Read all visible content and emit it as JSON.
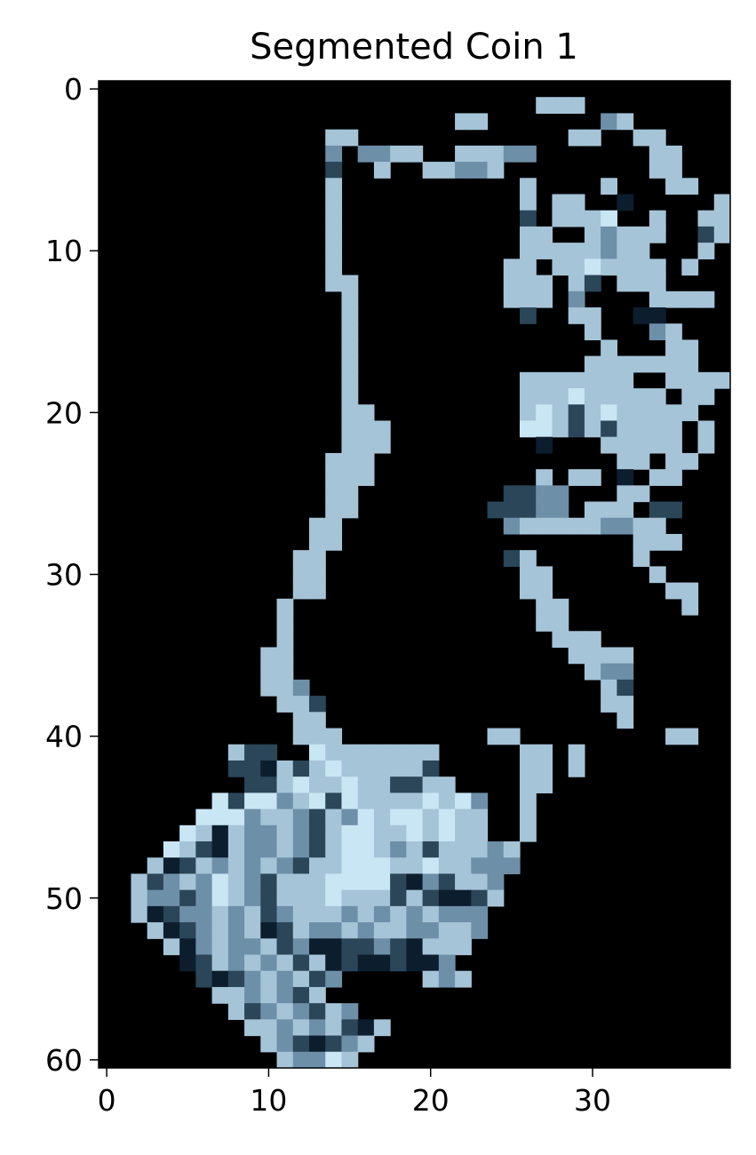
{
  "chart_data": {
    "type": "heatmap",
    "title": "Segmented Coin 1",
    "xlabel": "",
    "ylabel": "",
    "x_range": [
      -0.5,
      38.5
    ],
    "y_range": [
      60.5,
      -0.5
    ],
    "x_ticks": [
      0,
      10,
      20,
      30
    ],
    "y_ticks": [
      0,
      10,
      20,
      30,
      40,
      50,
      60
    ],
    "grid": false,
    "background": "#000000",
    "palette": {
      "p": "#a6c4d8",
      "q": "#c9e6f5",
      "m": "#6e8fa8",
      "d": "#2a4658",
      "k": "#0c1e2e"
    },
    "pixel_rows": [
      ".......................................",
      "...........................ppp.........",
      "......................pp.......mp......",
      "..............pp.............pp..pp....",
      "..............m.mmpp..pppmm.......pp...",
      "..............d..p..ppmmp.........pp...",
      "..............p...........p....p...pp..",
      "..............p...........p.pp..k.....pp",
      "..............p...........d.pppq..p..pppp",
      "..............p...........pp..pmppp..dp..",
      "..............p...........pppppmpp...p..",
      "..............p..........pp.ppqpppp.p..",
      "..............pp.........ppp.pd.ppp.....",
      "...............p.........ppp.m....pppp.",
      "...............p..........d..pp..kk...",
      "...............p..............p...mp...",
      "...............p...............p...pp..",
      "...............p..............ppppppp..",
      "...............p..........ppppppp..pppp",
      "...............p..........pppqppppp.pp.",
      "...............pp.........pqpdpqppppp..",
      "...............ppp........qqpdpdpppp.p.",
      "...............ppp.........k...ppppp.p.",
      "..............ppp...............pp.pp..",
      "..............ppp..........p.pp.k.pp...",
      "..............pp.........ddmm...pp.....",
      "..............pp........dddmm.ppp.dd...",
      ".............pp..........mpppppmmpp.....",
      ".............pp..................ppp....",
      "............pp...........dp......p......",
      "............pp............pp......p....",
      "............pp............pp.......pp...",
      "...........p...............pp.......p...",
      "...........p...............pp...........",
      "...........p................ppp.........",
      "..........pp.................pppp.......",
      "..........pp..................pmm.......",
      "..........ppm..................pd.......",
      "...........ppd.................pp.......",
      "............pp..................p.......",
      "............ppp.........pp.........pp..",
      "........pdd..qppppppp.....pp.p..........",
      "........ddkpdpqpppppd.....pp.p.........",
      ".........ddpqppqppddpp....pp...........",
      ".......qdqqmpqdqppppqpqm..p............",
      "......qqqmppmdpmqpqqpqpp..p............",
      ".....qpkpmmpmdpqqppqpqpp..p............",
      "....qpdkpmmpmdpqqpmpdpppmp.............",
      "...pkdpmpmpmdppqqqppqppmmm.............",
      "..pdmpmqpmdpppqqqqdkmdppm..............",
      "..pmmdmqpmdpppqpppdpdkkdp..............",
      "..pkdmmpmpdmpppmpmpmpmmm...............",
      "...pkdmpmpkdpmmpmppmmppm...............",
      "....pkmpmmpdmkkddmdkppp................",
      ".....kdpmpmpdpkdkkdkkm.................",
      "......dkdmpmpdm.....pmp................",
      ".......ppmpmdp.........................",
      "........pdmpmdpm.......................",
      ".........ppmpmpdkp.....................",
      "..........pmdkdmp......................",
      "...........pmmqp......................."
    ]
  }
}
